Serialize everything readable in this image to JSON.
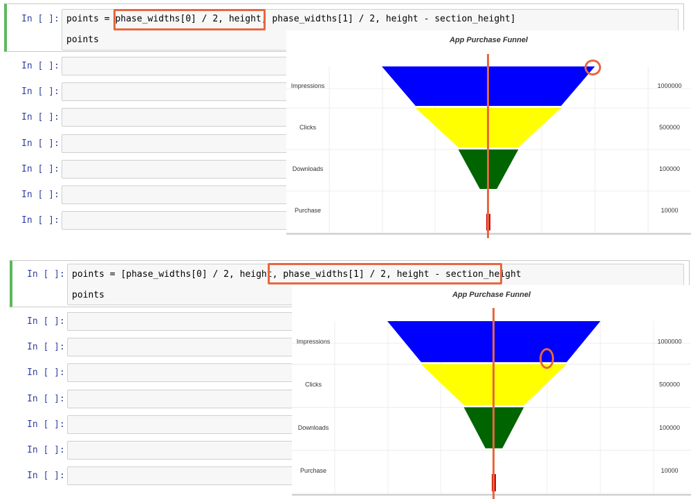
{
  "prompt_text": "In [ ]:",
  "code": {
    "top": {
      "line1_prefix": "points = ",
      "line1_rest": "phase_widths[0] / 2, height, phase_widths[1] / 2, height - section_height]",
      "line2": "points"
    },
    "bottom": {
      "line1": "points = [phase_widths[0] / 2, height, phase_widths[1] / 2, height - section_height",
      "line2": "points"
    }
  },
  "colors": {
    "highlight": "#e8663d",
    "accent_bar": "#5cb85c",
    "prompt": "#303f9f"
  },
  "chart_data": {
    "type": "funnel",
    "title": "App Purchase Funnel",
    "categories": [
      "Impressions",
      "Clicks",
      "Downloads",
      "Purchase"
    ],
    "values": [
      1000000,
      500000,
      100000,
      10000
    ],
    "value_labels": [
      "1000000",
      "500000",
      "100000",
      "10000"
    ],
    "series_colors": [
      "#0000ff",
      "#ffff00",
      "#006400",
      "#cc0000"
    ],
    "grid": true
  }
}
